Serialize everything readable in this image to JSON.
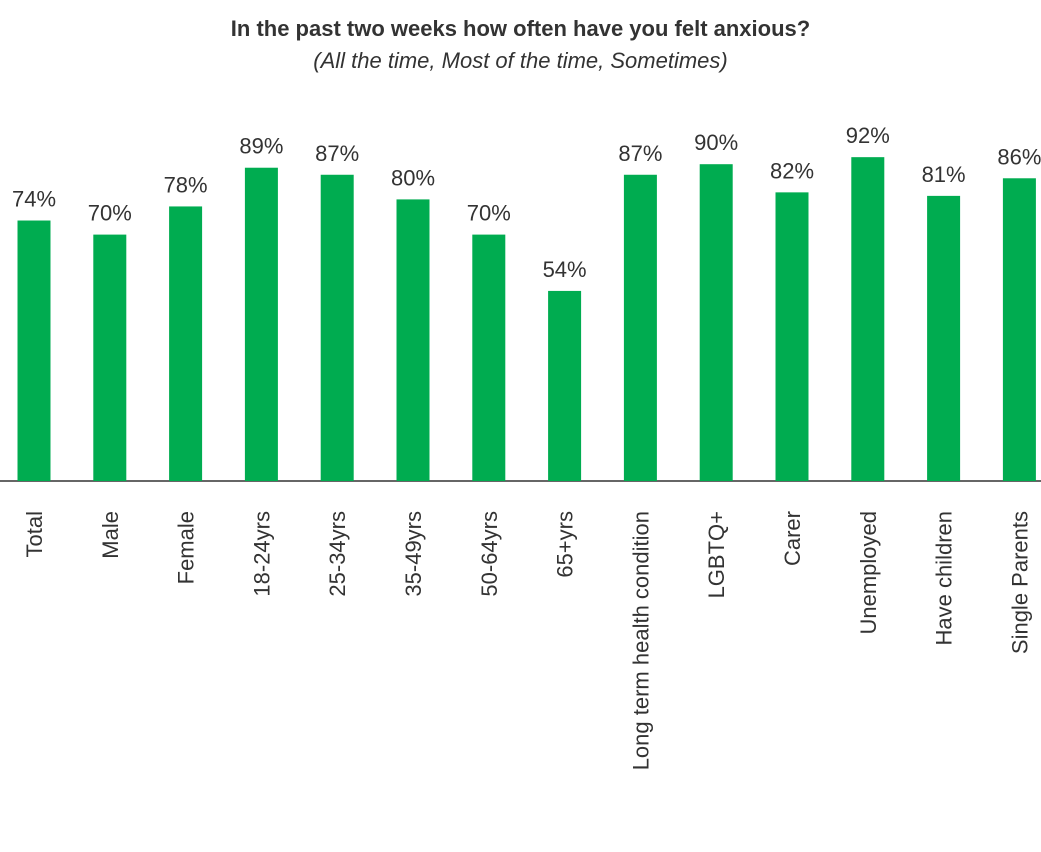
{
  "chart_data": {
    "type": "bar",
    "title": "In the past two weeks how often have you felt anxious?",
    "subtitle": "(All the time, Most of the time, Sometimes)",
    "categories": [
      "Total",
      "Male",
      "Female",
      "18-24yrs",
      "25-34yrs",
      "35-49yrs",
      "50-64yrs",
      "65+yrs",
      "Long term health condition",
      "LGBTQ+",
      "Carer",
      "Unemployed",
      "Have children",
      "Single Parents"
    ],
    "values": [
      74,
      70,
      78,
      89,
      87,
      80,
      70,
      54,
      87,
      90,
      82,
      92,
      81,
      86
    ],
    "labels": [
      "74%",
      "70%",
      "78%",
      "89%",
      "87%",
      "80%",
      "70%",
      "54%",
      "87%",
      "90%",
      "82%",
      "92%",
      "81%",
      "86%"
    ],
    "unit": "%",
    "ylim": [
      0,
      100
    ],
    "grid": false,
    "legend": "none",
    "bar_color": "#00AC50",
    "text_color": "#333333"
  }
}
